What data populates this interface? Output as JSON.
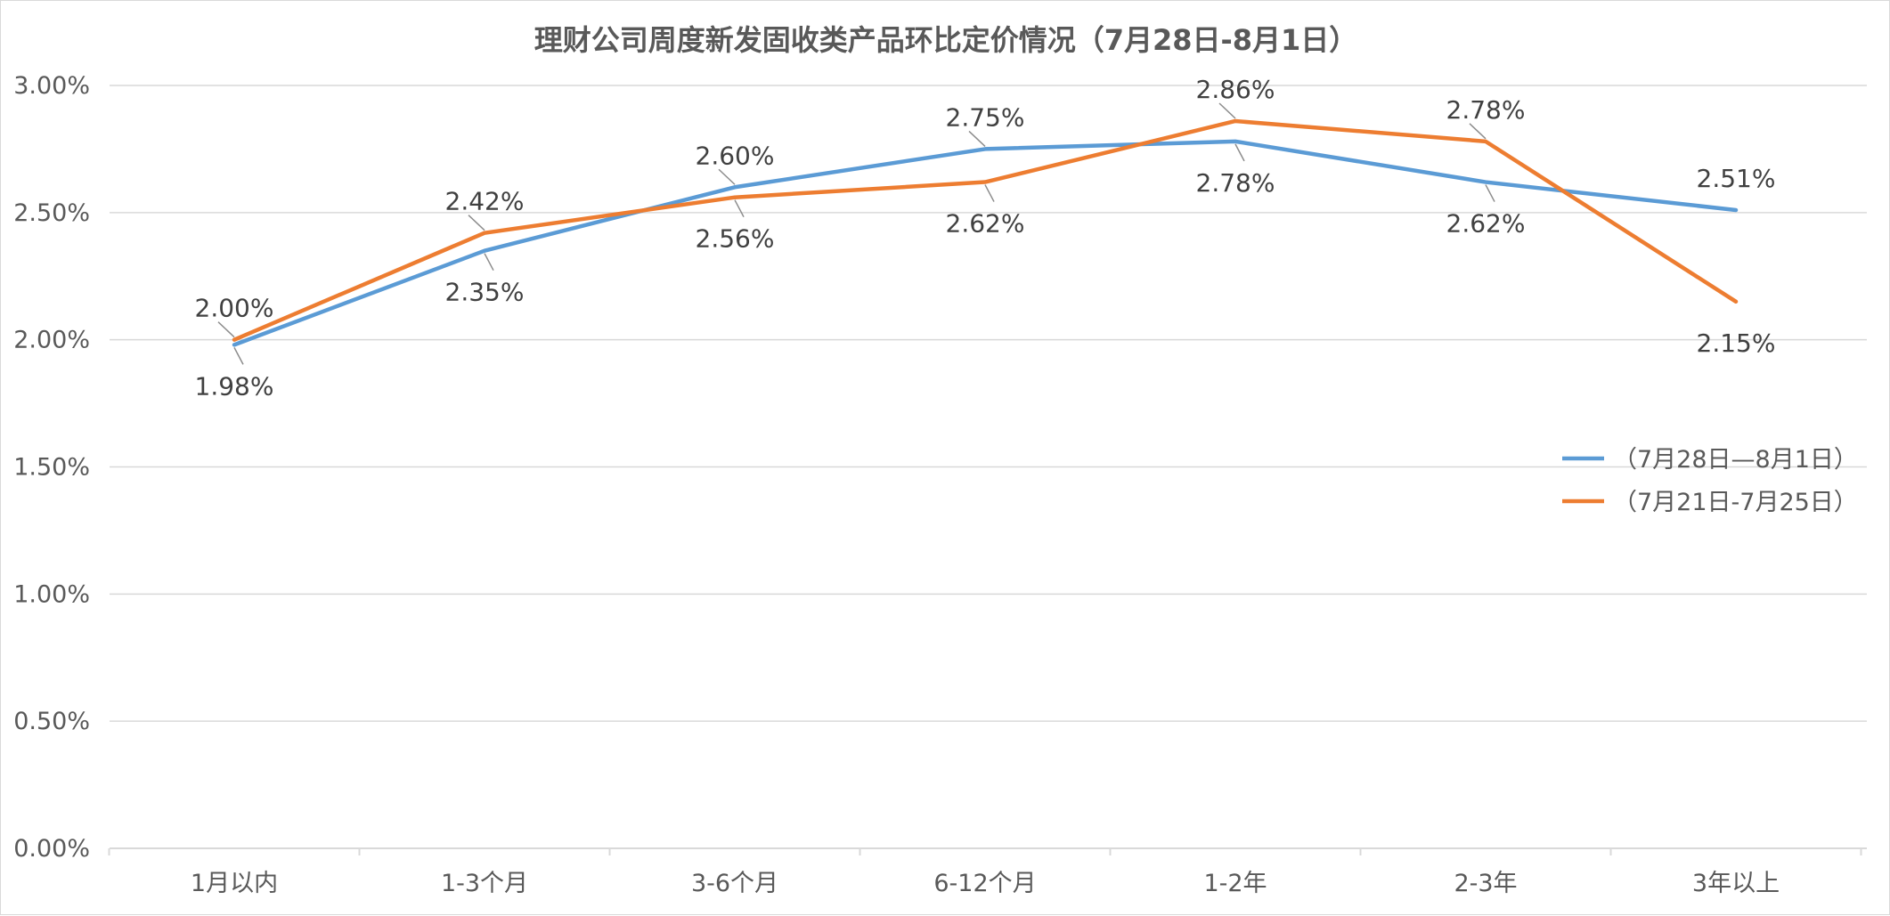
{
  "colors": {
    "series_1": "#5b9bd5",
    "series_2": "#ed7d31",
    "gridline": "#d9d9d9",
    "text": "#595959"
  },
  "chart_data": {
    "type": "line",
    "title": "理财公司周度新发固收类产品环比定价情况（7月28日-8月1日）",
    "xlabel": "",
    "ylabel": "",
    "categories": [
      "1月以内",
      "1-3个月",
      "3-6个月",
      "6-12个月",
      "1-2年",
      "2-3年",
      "3年以上"
    ],
    "ylim": [
      0,
      3.0
    ],
    "yticks": [
      0,
      0.5,
      1.0,
      1.5,
      2.0,
      2.5,
      3.0
    ],
    "ytick_labels": [
      "0.00%",
      "0.50%",
      "1.00%",
      "1.50%",
      "2.00%",
      "2.50%",
      "3.00%"
    ],
    "grid": true,
    "legend_position": "right",
    "series": [
      {
        "name": "（7月28日—8月1日）",
        "color": "#5b9bd5",
        "values": [
          1.98,
          2.35,
          2.6,
          2.75,
          2.78,
          2.62,
          2.51
        ],
        "labels": [
          "1.98%",
          "2.35%",
          "2.60%",
          "2.75%",
          "2.78%",
          "2.62%",
          "2.51%"
        ]
      },
      {
        "name": "（7月21日-7月25日）",
        "color": "#ed7d31",
        "values": [
          2.0,
          2.42,
          2.56,
          2.62,
          2.86,
          2.78,
          2.15
        ],
        "labels": [
          "2.00%",
          "2.42%",
          "2.56%",
          "2.62%",
          "2.86%",
          "2.78%",
          "2.15%"
        ]
      }
    ]
  }
}
